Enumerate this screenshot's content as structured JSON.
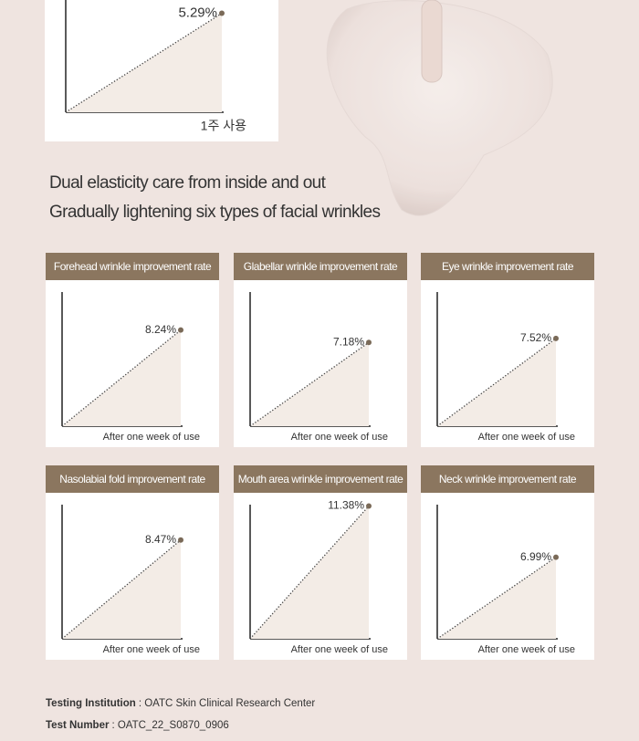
{
  "heading": [
    "Dual elasticity care from inside and out",
    "Gradually lightening six types of facial wrinkles"
  ],
  "chart_data": [
    {
      "type": "line",
      "values": [
        5.29
      ],
      "value_labels": [
        "5.29%"
      ],
      "x_label": "1주 사용",
      "ylim": [
        0,
        6
      ]
    },
    {
      "type": "line",
      "title": "Forehead wrinkle improvement rate",
      "values": [
        8.24
      ],
      "value_labels": [
        "8.24%"
      ],
      "x_label": "After one week of use",
      "ylim": [
        0,
        11.5
      ]
    },
    {
      "type": "line",
      "title": "Glabellar wrinkle improvement rate",
      "values": [
        7.18
      ],
      "value_labels": [
        "7.18%"
      ],
      "x_label": "After one week of use",
      "ylim": [
        0,
        11.5
      ]
    },
    {
      "type": "line",
      "title": "Eye wrinkle improvement rate",
      "values": [
        7.52
      ],
      "value_labels": [
        "7.52%"
      ],
      "x_label": "After one week of use",
      "ylim": [
        0,
        11.5
      ]
    },
    {
      "type": "line",
      "title": "Nasolabial fold improvement rate",
      "values": [
        8.47
      ],
      "value_labels": [
        "8.47%"
      ],
      "x_label": "After one week of use",
      "ylim": [
        0,
        11.5
      ]
    },
    {
      "type": "line",
      "title": "Mouth area wrinkle improvement rate",
      "values": [
        11.38
      ],
      "value_labels": [
        "11.38%"
      ],
      "x_label": "After one week of use",
      "ylim": [
        0,
        11.5
      ]
    },
    {
      "type": "line",
      "title": "Neck wrinkle improvement rate",
      "values": [
        6.99
      ],
      "value_labels": [
        "6.99%"
      ],
      "x_label": "After one week of use",
      "ylim": [
        0,
        11.5
      ]
    }
  ],
  "footer": [
    {
      "label": "Testing Institution",
      "value": ": OATC Skin Clinical Research Center"
    },
    {
      "label": "Test Number",
      "value": ": OATC_22_S0870_0906"
    }
  ]
}
